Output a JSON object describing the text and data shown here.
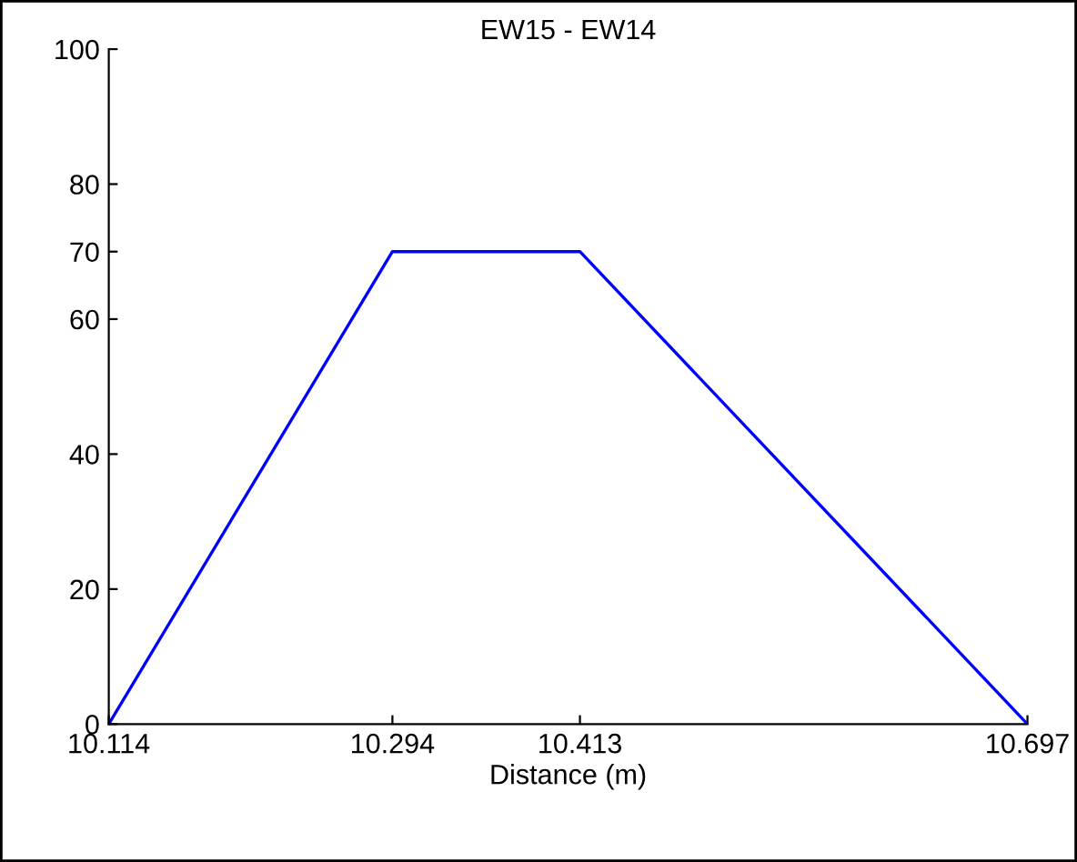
{
  "chart_data": {
    "type": "line",
    "title": "EW15 - EW14",
    "xlabel": "Distance (m)",
    "x": [
      10.114,
      10.294,
      10.413,
      10.697
    ],
    "series": [
      {
        "color": "#0000ff",
        "values": [
          0,
          70,
          70,
          0
        ]
      }
    ],
    "xlim": [
      10.114,
      10.697
    ],
    "xticks": [
      10.114,
      10.294,
      10.413,
      10.697
    ],
    "ylim": [
      0,
      100
    ],
    "yticks": [
      0,
      20,
      40,
      60,
      70,
      80,
      100
    ],
    "marker": "none",
    "line_style": "solid"
  }
}
